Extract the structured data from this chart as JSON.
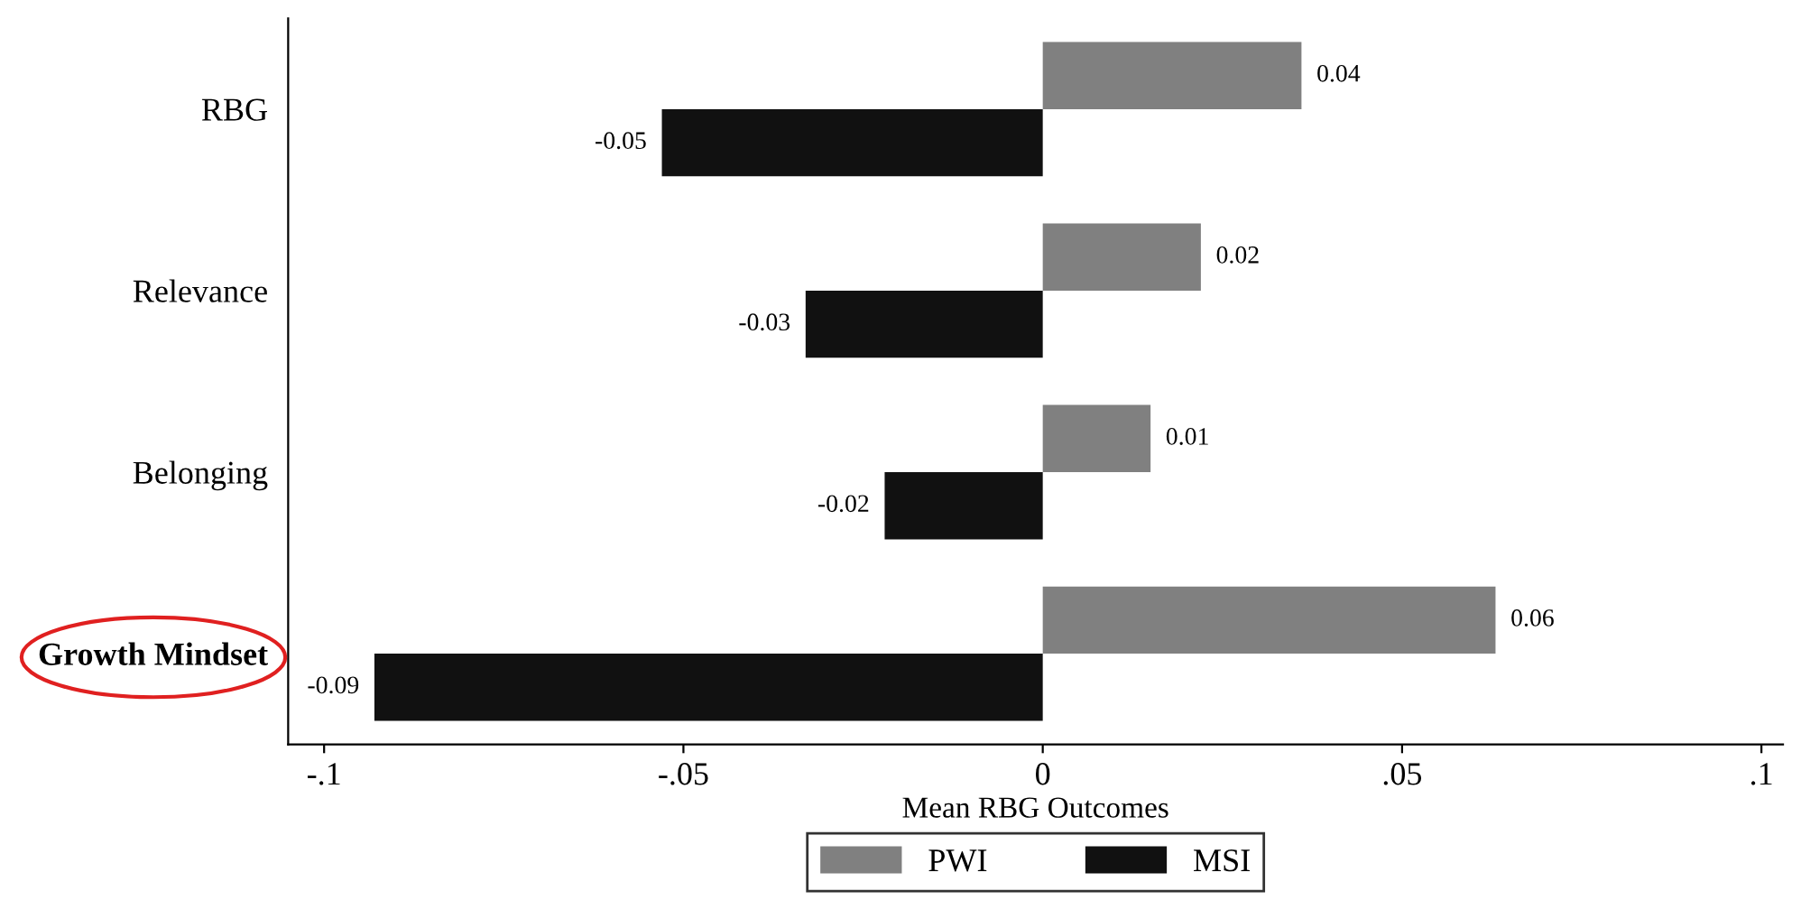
{
  "chart_data": {
    "type": "bar",
    "orientation": "horizontal",
    "xlabel": "Mean RBG Outcomes",
    "categories": [
      "RBG",
      "Relevance",
      "Belonging",
      "Growth Mindset"
    ],
    "series": [
      {
        "name": "PWI",
        "color": "#808080",
        "values": [
          0.036,
          0.022,
          0.015,
          0.063
        ],
        "value_labels": [
          "0.04",
          "0.02",
          "0.01",
          "0.06"
        ]
      },
      {
        "name": "MSI",
        "color": "#111111",
        "values": [
          -0.053,
          -0.033,
          -0.022,
          -0.093
        ],
        "value_labels": [
          "-0.05",
          "-0.03",
          "-0.02",
          "-0.09"
        ]
      }
    ],
    "xlim": [
      -0.105,
      0.103
    ],
    "xticks": [
      {
        "value": -0.1,
        "label": "-.1"
      },
      {
        "value": -0.05,
        "label": "-.05"
      },
      {
        "value": 0,
        "label": "0"
      },
      {
        "value": 0.05,
        "label": ".05"
      },
      {
        "value": 0.1,
        "label": ".1"
      }
    ],
    "legend": "bottom",
    "grid": false
  }
}
